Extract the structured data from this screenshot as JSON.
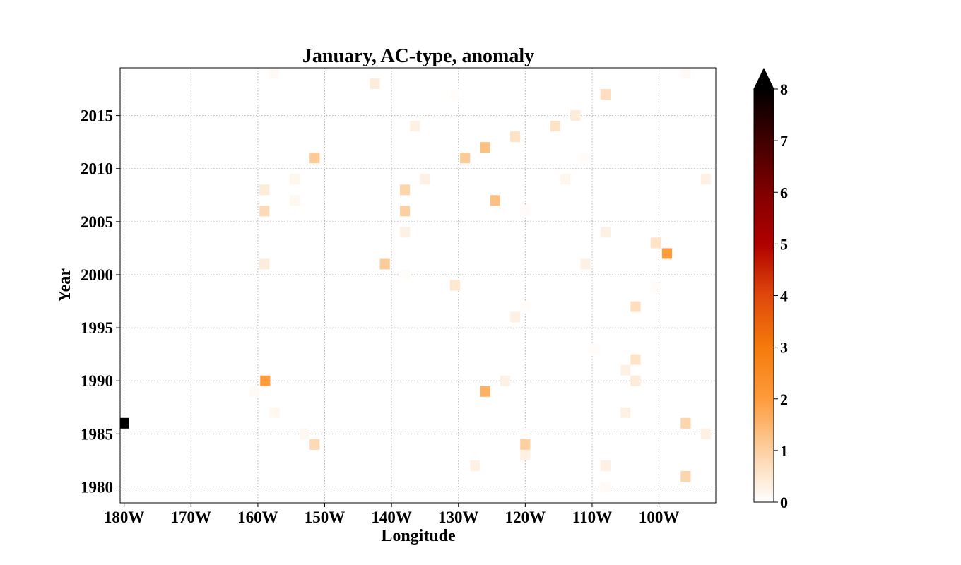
{
  "chart_data": {
    "type": "heatmap",
    "title": "January, AC-type, anomaly",
    "xlabel": "Longitude",
    "ylabel": "Year",
    "x_unit": "degrees longitude (negative = West)",
    "xlim": [
      -180.6,
      -91.5
    ],
    "ylim": [
      1978.5,
      2019.5
    ],
    "xticks": [
      -180,
      -170,
      -160,
      -150,
      -140,
      -130,
      -120,
      -110,
      -100
    ],
    "xtick_labels": [
      "180W",
      "170W",
      "160W",
      "150W",
      "140W",
      "130W",
      "120W",
      "110W",
      "100W"
    ],
    "yticks": [
      1980,
      1985,
      1990,
      1995,
      2000,
      2005,
      2010,
      2015
    ],
    "ytick_labels": [
      "1980",
      "1985",
      "1990",
      "1995",
      "2000",
      "2005",
      "2010",
      "2015"
    ],
    "grid": true,
    "colorbar": {
      "min": 0,
      "max": 8,
      "extend": "max",
      "ticks": [
        0,
        1,
        2,
        3,
        4,
        5,
        6,
        7,
        8
      ],
      "tick_labels": [
        "0",
        "1",
        "2",
        "3",
        "4",
        "5",
        "6",
        "7",
        "8"
      ],
      "colors": [
        "#ffffff",
        "#fdd0a2",
        "#fe9b3c",
        "#f57a0a",
        "#e0480c",
        "#b00000",
        "#800000",
        "#400000",
        "#000000"
      ]
    },
    "cell_size": {
      "lon": 1.5,
      "year": 1
    },
    "cells": [
      {
        "lon": -180.0,
        "year": 1986,
        "value": 8.0
      },
      {
        "lon": -158.9,
        "year": 1990,
        "value": 2.0
      },
      {
        "lon": -126.0,
        "year": 1989,
        "value": 1.6
      },
      {
        "lon": -98.8,
        "year": 2002,
        "value": 2.0
      },
      {
        "lon": -124.5,
        "year": 2007,
        "value": 1.3
      },
      {
        "lon": -126.0,
        "year": 2012,
        "value": 1.3
      },
      {
        "lon": -151.5,
        "year": 2011,
        "value": 1.1
      },
      {
        "lon": -129.0,
        "year": 2011,
        "value": 1.1
      },
      {
        "lon": -141.0,
        "year": 2001,
        "value": 1.1
      },
      {
        "lon": -138.0,
        "year": 2006,
        "value": 1.0
      },
      {
        "lon": -138.0,
        "year": 2008,
        "value": 0.9
      },
      {
        "lon": -159.0,
        "year": 2006,
        "value": 0.8
      },
      {
        "lon": -120.0,
        "year": 1984,
        "value": 1.0
      },
      {
        "lon": -151.5,
        "year": 1984,
        "value": 0.8
      },
      {
        "lon": -96.0,
        "year": 1986,
        "value": 0.9
      },
      {
        "lon": -96.0,
        "year": 1981,
        "value": 0.9
      },
      {
        "lon": -103.5,
        "year": 1997,
        "value": 0.7
      },
      {
        "lon": -103.5,
        "year": 1992,
        "value": 0.6
      },
      {
        "lon": -100.5,
        "year": 2003,
        "value": 0.6
      },
      {
        "lon": -108.0,
        "year": 2017,
        "value": 0.7
      },
      {
        "lon": -115.5,
        "year": 2014,
        "value": 0.6
      },
      {
        "lon": -121.5,
        "year": 2013,
        "value": 0.6
      },
      {
        "lon": -142.5,
        "year": 2018,
        "value": 0.4
      },
      {
        "lon": -159.0,
        "year": 2008,
        "value": 0.4
      },
      {
        "lon": -159.0,
        "year": 2001,
        "value": 0.4
      },
      {
        "lon": -138.0,
        "year": 2004,
        "value": 0.3
      },
      {
        "lon": -130.5,
        "year": 1999,
        "value": 0.5
      },
      {
        "lon": -112.5,
        "year": 2015,
        "value": 0.4
      },
      {
        "lon": -136.5,
        "year": 2014,
        "value": 0.3
      },
      {
        "lon": -135.0,
        "year": 2009,
        "value": 0.3
      },
      {
        "lon": -108.0,
        "year": 2004,
        "value": 0.3
      },
      {
        "lon": -103.5,
        "year": 1990,
        "value": 0.4
      },
      {
        "lon": -105.0,
        "year": 1991,
        "value": 0.3
      },
      {
        "lon": -123.0,
        "year": 1990,
        "value": 0.3
      },
      {
        "lon": -121.5,
        "year": 1996,
        "value": 0.3
      },
      {
        "lon": -111.0,
        "year": 2001,
        "value": 0.3
      },
      {
        "lon": -108.0,
        "year": 1982,
        "value": 0.3
      },
      {
        "lon": -120.0,
        "year": 1983,
        "value": 0.3
      },
      {
        "lon": -127.5,
        "year": 1982,
        "value": 0.3
      },
      {
        "lon": -105.0,
        "year": 1987,
        "value": 0.3
      },
      {
        "lon": -93.0,
        "year": 1985,
        "value": 0.3
      },
      {
        "lon": -93.0,
        "year": 2009,
        "value": 0.3
      },
      {
        "lon": -114.0,
        "year": 2009,
        "value": 0.2
      },
      {
        "lon": -154.5,
        "year": 2009,
        "value": 0.2
      },
      {
        "lon": -154.5,
        "year": 2007,
        "value": 0.15
      },
      {
        "lon": -157.5,
        "year": 1987,
        "value": 0.15
      },
      {
        "lon": -153.0,
        "year": 1985,
        "value": 0.15
      },
      {
        "lon": -160.5,
        "year": 1989,
        "value": 0.1
      },
      {
        "lon": -157.5,
        "year": 2019,
        "value": 0.1
      },
      {
        "lon": -96.0,
        "year": 2019,
        "value": 0.1
      },
      {
        "lon": -108.0,
        "year": 1980,
        "value": 0.1
      },
      {
        "lon": -111.0,
        "year": 2011,
        "value": 0.08
      },
      {
        "lon": -120.0,
        "year": 2006,
        "value": 0.08
      },
      {
        "lon": -100.5,
        "year": 1999,
        "value": 0.08
      },
      {
        "lon": -130.5,
        "year": 2017,
        "value": 0.06
      },
      {
        "lon": -109.5,
        "year": 1993,
        "value": 0.06
      },
      {
        "lon": -120.0,
        "year": 1997,
        "value": 0.06
      },
      {
        "lon": -120.0,
        "year": 1985,
        "value": 0.06
      },
      {
        "lon": -138.0,
        "year": 2000,
        "value": 0.05
      }
    ]
  }
}
